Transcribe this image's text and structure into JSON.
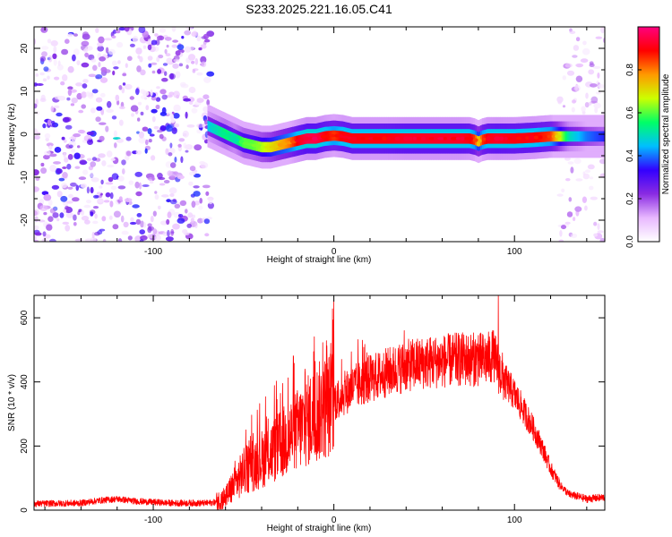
{
  "title": "S233.2025.221.16.05.C41",
  "chart_data": [
    {
      "type": "heatmap",
      "name": "spectrogram",
      "xlabel": "Height of straight line (km)",
      "ylabel": "Frequency (Hz)",
      "xlim": [
        -166,
        150
      ],
      "ylim": [
        -25,
        25
      ],
      "xticks": [
        -100,
        0,
        100
      ],
      "yticks": [
        -20,
        -10,
        0,
        10,
        20
      ],
      "colorbar": {
        "label": "Normalized spectral amplitude",
        "range": [
          0,
          1
        ],
        "ticks": [
          0.0,
          0.2,
          0.4,
          0.6,
          0.8
        ],
        "colormap": [
          "#ffffff",
          "#e8b8ff",
          "#8a2be2",
          "#3300ff",
          "#00bfff",
          "#00ff66",
          "#ccff00",
          "#ff9900",
          "#ff0000",
          "#ff007f"
        ]
      },
      "noise_region_km": [
        [
          -166,
          -68
        ],
        [
          125,
          150
        ]
      ],
      "carrier_trace": {
        "x": [
          -70,
          -65,
          -60,
          -55,
          -50,
          -45,
          -40,
          -35,
          -30,
          -25,
          -20,
          -15,
          -10,
          -5,
          0,
          5,
          10,
          20,
          30,
          40,
          50,
          60,
          70,
          75,
          78,
          80,
          82,
          85,
          90,
          100,
          110,
          120,
          130,
          140,
          150
        ],
        "freq_hz": [
          2,
          1,
          0,
          -1,
          -2,
          -2.5,
          -3,
          -3,
          -2.5,
          -2,
          -1.5,
          -1,
          -1,
          -0.5,
          -0.3,
          -0.5,
          -1,
          -1,
          -1,
          -1,
          -1,
          -1,
          -1,
          -1,
          -1.3,
          -1.7,
          -1.3,
          -1,
          -1,
          -1,
          -0.8,
          -0.5,
          -0.5,
          -0.5,
          -0.5
        ],
        "amplitude": [
          0.45,
          0.5,
          0.55,
          0.5,
          0.6,
          0.6,
          0.65,
          0.7,
          0.75,
          0.8,
          0.9,
          0.95,
          0.95,
          0.9,
          0.85,
          0.9,
          0.9,
          0.9,
          0.9,
          0.92,
          0.92,
          0.92,
          0.92,
          0.9,
          0.85,
          0.7,
          0.85,
          0.9,
          0.92,
          0.9,
          0.9,
          0.85,
          0.5,
          0.4,
          0.35
        ]
      }
    },
    {
      "type": "line",
      "name": "snr",
      "xlabel": "Height of straight line (km)",
      "ylabel": "SNR (10 * v/v)",
      "xlim": [
        -166,
        150
      ],
      "ylim": [
        0,
        670
      ],
      "xticks": [
        -100,
        0,
        100
      ],
      "yticks": [
        0,
        200,
        400,
        600
      ],
      "color": "#ff0000",
      "envelope": {
        "x": [
          -166,
          -140,
          -130,
          -120,
          -110,
          -100,
          -90,
          -80,
          -70,
          -65,
          -60,
          -55,
          -50,
          -40,
          -30,
          -20,
          -10,
          0,
          10,
          20,
          30,
          40,
          50,
          60,
          70,
          80,
          85,
          88,
          90,
          92,
          95,
          100,
          105,
          110,
          115,
          120,
          125,
          130,
          140,
          150
        ],
        "y": [
          20,
          22,
          30,
          35,
          28,
          25,
          22,
          22,
          22,
          25,
          40,
          80,
          120,
          160,
          200,
          250,
          300,
          340,
          380,
          410,
          430,
          450,
          460,
          465,
          470,
          470,
          470,
          480,
          460,
          430,
          400,
          360,
          310,
          260,
          200,
          130,
          80,
          50,
          35,
          40
        ]
      },
      "spikes": [
        {
          "x": 91,
          "y": 670
        },
        {
          "x": 88,
          "y": 500
        },
        {
          "x": 80,
          "y": 545
        },
        {
          "x": 39,
          "y": 560
        },
        {
          "x": 2,
          "y": 395
        },
        {
          "x": 6,
          "y": 400
        },
        {
          "x": -16,
          "y": 440
        },
        {
          "x": -21,
          "y": 280
        },
        {
          "x": -45,
          "y": 215
        }
      ]
    }
  ]
}
